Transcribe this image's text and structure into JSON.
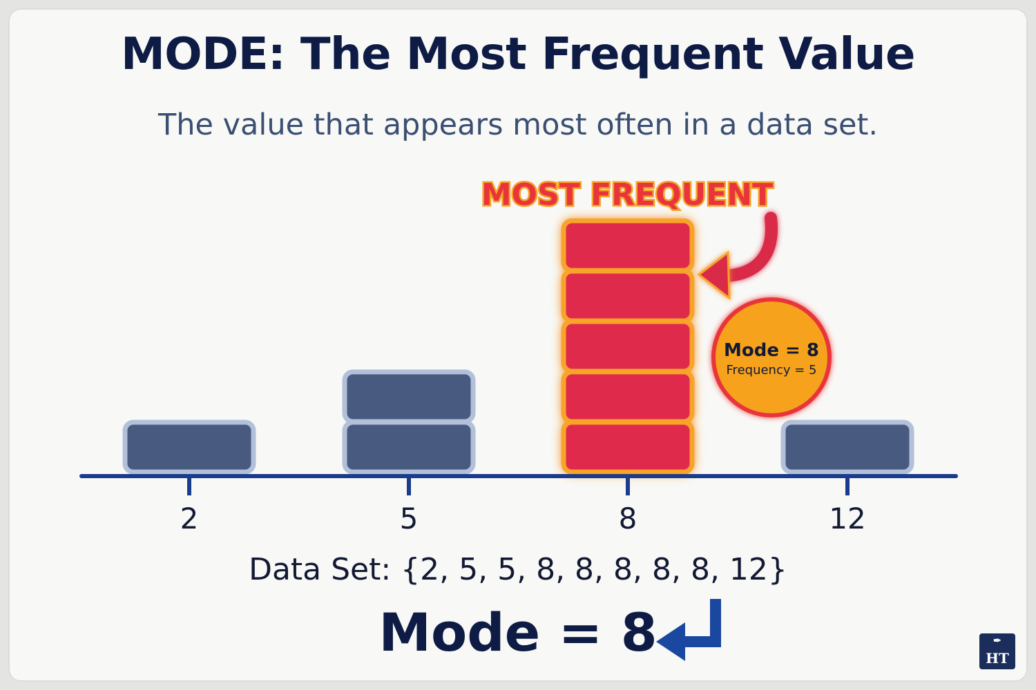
{
  "title": "MODE: The Most Frequent Value",
  "subtitle": "The value that appears most often in a data set.",
  "highlight_label": "MOST FREQUENT",
  "badge": {
    "line1": "Mode = 8",
    "line2": "Frequency = 5"
  },
  "dataset_text": "Data Set: {2, 5, 5, 8, 8, 8, 8, 8, 12}",
  "result_text": "Mode = 8",
  "logo_text": "HT",
  "colors": {
    "normal_block": "#485a80",
    "normal_border": "#b3c0d9",
    "mode_block": "#e02b4b",
    "mode_border": "#f8a42a",
    "axis": "#1a3c8c",
    "arrow_red": "#d92b47",
    "arrow_blue": "#1a47a0",
    "badge_fill": "#f6a21f",
    "badge_ring": "#e8343b"
  },
  "chart_data": {
    "type": "bar",
    "categories": [
      "2",
      "5",
      "8",
      "12"
    ],
    "values": [
      1,
      2,
      5,
      1
    ],
    "highlight_category": "8"
  }
}
